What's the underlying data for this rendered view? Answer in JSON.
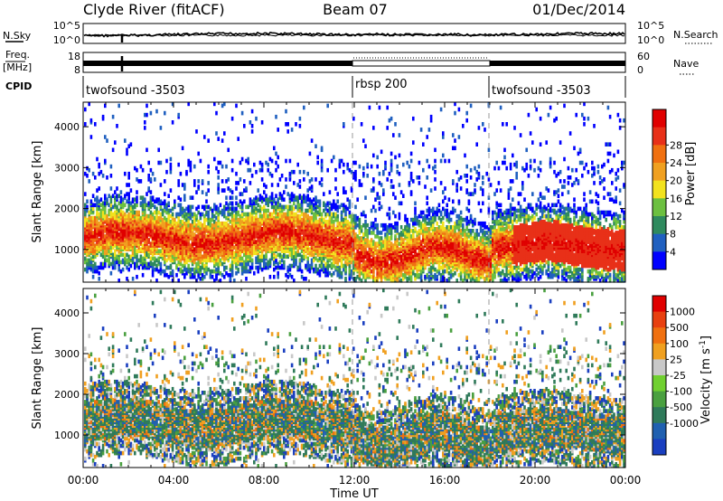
{
  "header": {
    "station": "Clyde River (fitACF)",
    "beam": "Beam 07",
    "date": "01/Dec/2014"
  },
  "left_labels": {
    "nsky": "N.Sky",
    "freq_line1": "Freq.",
    "freq_line2": "[MHz]",
    "cpid": "CPID"
  },
  "right_labels": {
    "nsearch": "N.Search",
    "nave": "Nave"
  },
  "noise_axis": {
    "left_top": "10^5",
    "left_bottom": "10^0",
    "right_top": "10^5",
    "right_bottom": "10^0"
  },
  "freq_axis": {
    "left_top": "18",
    "left_bottom": "8",
    "right_top": "60",
    "right_bottom": "0"
  },
  "cpid_segments": [
    {
      "label": "twofsound -3503",
      "start_hour": 0,
      "end_hour": 12
    },
    {
      "label": "rbsp 200",
      "start_hour": 12,
      "end_hour": 18
    },
    {
      "label": "twofsound -3503",
      "start_hour": 18,
      "end_hour": 24
    }
  ],
  "chart_data": [
    {
      "type": "heatmap",
      "name": "power",
      "ylabel": "Slant Range [km]",
      "xlabel": "",
      "xlim": [
        0,
        24
      ],
      "ylim": [
        200,
        4600
      ],
      "yticks": [
        "1000",
        "2000",
        "3000",
        "4000"
      ],
      "colorbar": {
        "label": "Power [dB]",
        "ticks": [
          "4",
          "8",
          "12",
          "16",
          "20",
          "24",
          "28"
        ],
        "range": [
          0,
          30
        ],
        "colors": [
          "#0000ff",
          "#2060c0",
          "#2f8a5e",
          "#6cc040",
          "#f2e21e",
          "#f0a020",
          "#f07010",
          "#e83018",
          "#e00000"
        ]
      }
    },
    {
      "type": "heatmap",
      "name": "velocity",
      "ylabel": "Slant Range [km]",
      "xlabel": "Time UT",
      "xlim": [
        0,
        24
      ],
      "ylim": [
        200,
        4600
      ],
      "yticks": [
        "1000",
        "2000",
        "3000",
        "4000"
      ],
      "xticks": [
        "00:00",
        "04:00",
        "08:00",
        "12:00",
        "16:00",
        "20:00",
        "00:00"
      ],
      "colorbar": {
        "label": "Velocity [m s^-1]",
        "ticks": [
          "1000",
          "500",
          "100",
          "25",
          "-25",
          "-100",
          "-500",
          "-1000"
        ],
        "colors": [
          "#1a3fc0",
          "#2060b0",
          "#2f7a5a",
          "#4aa040",
          "#70d030",
          "#c8c8c8",
          "#f0a020",
          "#f07010",
          "#e84010",
          "#e00000"
        ]
      }
    }
  ]
}
